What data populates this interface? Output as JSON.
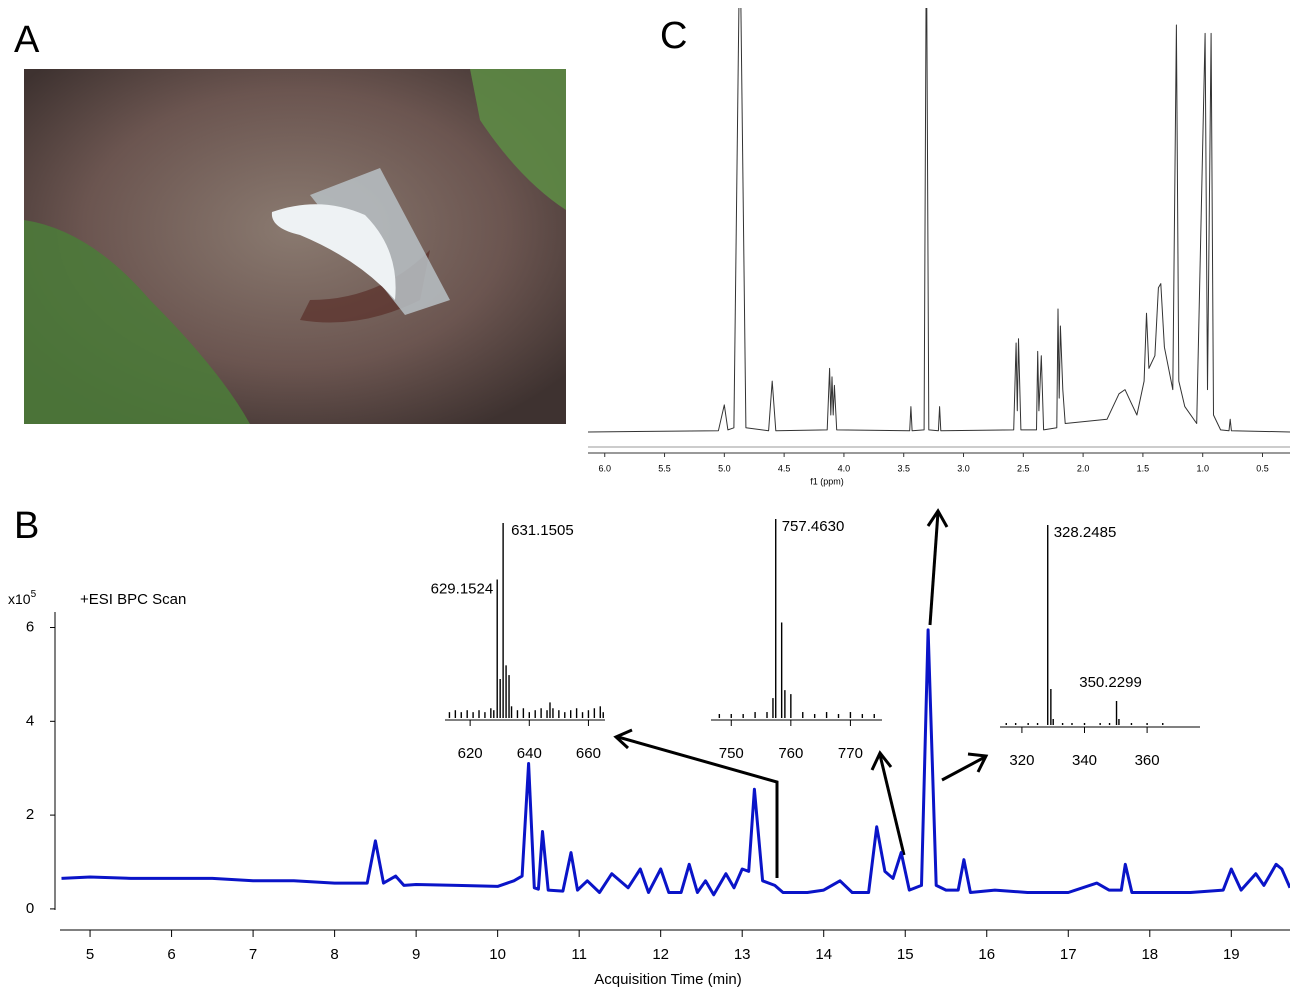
{
  "photo": {
    "panel_label": "A"
  },
  "chart_data": [
    {
      "type": "line",
      "panel_label": "B",
      "annotation": "+ESI BPC Scan",
      "y_multiplier": {
        "base": "x10",
        "exponent": "5"
      },
      "xlabel": "Acquisition Time (min)",
      "color": "#0a14c8",
      "x": [
        4.65,
        5.0,
        5.5,
        6.0,
        6.5,
        7.0,
        7.5,
        8.0,
        8.4,
        8.5,
        8.6,
        8.75,
        8.85,
        9.0,
        9.5,
        10.0,
        10.2,
        10.3,
        10.38,
        10.45,
        10.5,
        10.55,
        10.62,
        10.8,
        10.9,
        10.98,
        11.1,
        11.25,
        11.4,
        11.6,
        11.75,
        11.85,
        12.0,
        12.1,
        12.25,
        12.35,
        12.45,
        12.55,
        12.65,
        12.8,
        12.9,
        13.0,
        13.08,
        13.15,
        13.25,
        13.4,
        13.5,
        13.8,
        14.0,
        14.2,
        14.35,
        14.55,
        14.65,
        14.75,
        14.85,
        14.95,
        15.05,
        15.2,
        15.28,
        15.38,
        15.5,
        15.65,
        15.72,
        15.8,
        16.1,
        16.5,
        17.0,
        17.35,
        17.5,
        17.65,
        17.7,
        17.78,
        18.0,
        18.5,
        18.9,
        19.0,
        19.12,
        19.3,
        19.4,
        19.55,
        19.62,
        19.72
      ],
      "values": [
        0.65,
        0.68,
        0.65,
        0.65,
        0.65,
        0.6,
        0.6,
        0.55,
        0.55,
        1.45,
        0.55,
        0.7,
        0.5,
        0.52,
        0.5,
        0.48,
        0.6,
        0.7,
        3.1,
        0.45,
        0.42,
        1.65,
        0.4,
        0.38,
        1.2,
        0.4,
        0.6,
        0.35,
        0.75,
        0.45,
        0.85,
        0.35,
        0.85,
        0.35,
        0.35,
        0.95,
        0.35,
        0.6,
        0.3,
        0.75,
        0.45,
        0.85,
        0.8,
        2.55,
        0.6,
        0.5,
        0.35,
        0.35,
        0.4,
        0.6,
        0.35,
        0.35,
        1.75,
        0.8,
        0.65,
        1.2,
        0.4,
        0.5,
        5.95,
        0.5,
        0.4,
        0.4,
        1.05,
        0.35,
        0.4,
        0.35,
        0.35,
        0.55,
        0.4,
        0.4,
        0.95,
        0.35,
        0.35,
        0.35,
        0.4,
        0.85,
        0.4,
        0.75,
        0.5,
        0.95,
        0.85,
        0.45
      ],
      "xlim": [
        4.57,
        19.72
      ],
      "xticks": [
        5,
        6,
        7,
        8,
        9,
        10,
        11,
        12,
        13,
        14,
        15,
        16,
        17,
        18,
        19
      ],
      "ylim": [
        -0.45,
        6.8
      ],
      "yticks": [
        0,
        2,
        4,
        6
      ]
    },
    {
      "type": "line",
      "panel_label": "C",
      "xlabel": "f1 (ppm)",
      "color": "#333333",
      "x": [
        6.14,
        5.05,
        5.0,
        4.97,
        4.92,
        4.87,
        4.82,
        4.63,
        4.6,
        4.57,
        4.14,
        4.12,
        4.11,
        4.1,
        4.09,
        4.08,
        4.06,
        3.45,
        3.44,
        3.43,
        3.33,
        3.31,
        3.29,
        3.21,
        3.2,
        3.19,
        2.58,
        2.56,
        2.55,
        2.54,
        2.52,
        2.39,
        2.38,
        2.37,
        2.35,
        2.33,
        2.22,
        2.21,
        2.2,
        2.19,
        2.17,
        2.15,
        1.8,
        1.7,
        1.65,
        1.6,
        1.55,
        1.49,
        1.47,
        1.45,
        1.4,
        1.37,
        1.35,
        1.32,
        1.25,
        1.22,
        1.2,
        1.15,
        1.05,
        0.98,
        0.96,
        0.93,
        0.91,
        0.85,
        0.78,
        0.77,
        0.76,
        0.27
      ],
      "values": [
        0,
        0.3,
        6.4,
        0.5,
        1,
        120,
        1,
        0.3,
        12,
        0.3,
        0.5,
        15,
        4,
        13,
        4,
        11,
        0.5,
        0.3,
        6,
        0.3,
        0.5,
        120,
        0.5,
        0.3,
        6,
        0.3,
        0.5,
        21,
        5,
        22,
        0.5,
        0.5,
        19,
        5,
        18,
        0.5,
        1,
        29,
        8,
        25,
        10,
        2,
        3,
        9,
        10,
        7,
        4,
        12,
        28,
        15,
        18,
        34,
        35,
        20,
        10,
        96,
        12,
        6,
        2,
        94,
        10,
        94,
        4,
        0.5,
        0.3,
        3,
        0.3,
        0
      ],
      "xlim": [
        6.14,
        0.27
      ],
      "xticks": [
        {
          "value": 6,
          "label": "6.0"
        },
        5.5,
        {
          "value": 5,
          "label": "5.0"
        },
        4.5,
        {
          "value": 4,
          "label": "4.0"
        },
        3.5,
        {
          "value": 3,
          "label": "3.0"
        },
        2.5,
        {
          "value": 2,
          "label": "2.0"
        },
        1.5,
        {
          "value": 1,
          "label": "1.0"
        },
        0.5
      ],
      "ylim": [
        0,
        100
      ]
    },
    {
      "type": "stick",
      "x": [
        613,
        615,
        617,
        619,
        621,
        623,
        625,
        627,
        628,
        629.1524,
        630.15,
        631.1505,
        632.15,
        633.15,
        634,
        636,
        638,
        640,
        642,
        644,
        646,
        647,
        648,
        650,
        652,
        654,
        656,
        658,
        660,
        662,
        664,
        665
      ],
      "values": [
        3,
        4,
        3,
        4,
        3,
        4,
        3,
        5,
        4,
        71,
        20,
        100,
        27,
        22,
        6,
        4,
        5,
        3,
        4,
        5,
        4,
        8,
        5,
        4,
        3,
        4,
        5,
        3,
        4,
        5,
        6,
        3
      ],
      "peak_labels": [
        631.1505,
        629.1524
      ],
      "xlim": [
        611.5,
        665.6
      ],
      "xticks": [
        620,
        640,
        660
      ],
      "ylim": [
        0,
        100
      ]
    },
    {
      "type": "stick",
      "x": [
        748,
        750,
        752,
        754,
        756,
        757,
        757.463,
        758.46,
        759,
        760,
        762,
        764,
        766,
        768,
        770,
        772,
        774
      ],
      "values": [
        2,
        2,
        2,
        3,
        3,
        10,
        100,
        48,
        14,
        12,
        3,
        2,
        3,
        2,
        3,
        2,
        2
      ],
      "peak_labels": [
        {
          "value": 757.463,
          "label": "757.4630"
        }
      ],
      "xlim": [
        746.6,
        775.3
      ],
      "xticks": [
        750,
        760,
        770
      ],
      "ylim": [
        0,
        100
      ]
    },
    {
      "type": "stick",
      "x": [
        315,
        318,
        322,
        325,
        328.2485,
        329.25,
        330,
        333,
        336,
        340,
        345,
        348,
        350.2299,
        351,
        355,
        360,
        365
      ],
      "values": [
        1,
        1,
        1,
        1,
        100,
        18,
        3,
        1,
        1,
        1,
        1,
        1,
        12,
        3,
        1,
        1,
        1
      ],
      "peak_labels": [
        328.2485,
        350.2299
      ],
      "xlim": [
        313,
        376.9
      ],
      "xticks": [
        320,
        340,
        360
      ],
      "ylim": [
        0,
        100
      ]
    }
  ]
}
